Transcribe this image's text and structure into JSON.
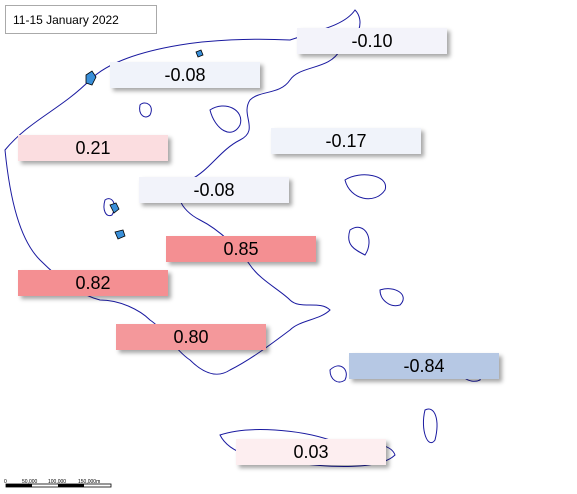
{
  "title": "11-15 January 2022",
  "labels": [
    {
      "text": "-0.10",
      "color": "#f3f3fa"
    },
    {
      "text": "-0.08",
      "color": "#f0f3fa"
    },
    {
      "text": "0.21",
      "color": "#fbdde0"
    },
    {
      "text": "-0.17",
      "color": "#f0f3fa"
    },
    {
      "text": "-0.08",
      "color": "#f2f3fa"
    },
    {
      "text": "0.85",
      "color": "#f48f92"
    },
    {
      "text": "0.82",
      "color": "#f48f92"
    },
    {
      "text": "0.80",
      "color": "#f4989b"
    },
    {
      "text": "-0.84",
      "color": "#b6c8e4"
    },
    {
      "text": "0.03",
      "color": "#fdeef0"
    }
  ],
  "scale_bar": {
    "labels": [
      "0",
      "50,000",
      "100,000",
      "150,000m"
    ]
  }
}
